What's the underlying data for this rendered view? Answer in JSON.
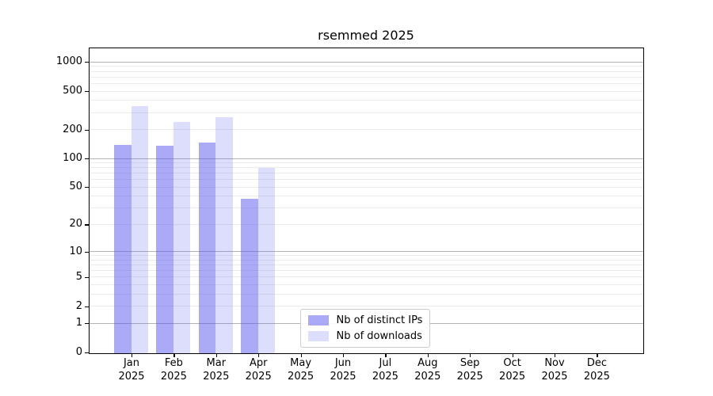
{
  "title": "rsemmed 2025",
  "chart_data": {
    "type": "bar",
    "title": "rsemmed 2025",
    "categories": [
      "Jan",
      "Feb",
      "Mar",
      "Apr",
      "May",
      "Jun",
      "Jul",
      "Aug",
      "Sep",
      "Oct",
      "Nov",
      "Dec"
    ],
    "year": "2025",
    "series": [
      {
        "name": "Nb of distinct IPs",
        "color": "#aaaaf2",
        "fill": "rgba(85,85,240,0.5)",
        "values": [
          140,
          138,
          147,
          38,
          null,
          null,
          null,
          null,
          null,
          null,
          null,
          null
        ]
      },
      {
        "name": "Nb of downloads",
        "color": "#ddddfb",
        "fill": "rgba(85,85,240,0.2)",
        "values": [
          354,
          243,
          272,
          80,
          null,
          null,
          null,
          null,
          null,
          null,
          null,
          null
        ]
      }
    ],
    "xlabel": "",
    "ylabel": "",
    "y_axis": {
      "scale": "log1p",
      "ticks": [
        0,
        1,
        2,
        5,
        10,
        20,
        50,
        100,
        200,
        500,
        1000
      ],
      "major_grid_values": [
        1,
        10,
        100,
        1000
      ],
      "ylim": [
        0,
        1387
      ],
      "grid": true
    },
    "legend": {
      "position": "lower center-right inside plot",
      "entries": [
        "Nb of distinct IPs",
        "Nb of downloads"
      ]
    }
  },
  "colors": {
    "background": "#ffffff",
    "axis": "#000000",
    "grid_major": "#b3b3b3",
    "grid_minor": "#ebebeb",
    "legend_border": "#cccccc",
    "distinct_ips_bar": "#aaaaf2",
    "downloads_bar": "#ddddfb"
  }
}
